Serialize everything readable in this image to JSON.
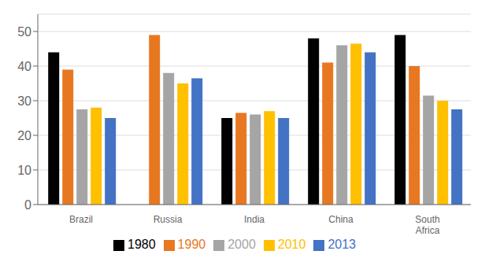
{
  "chart_data": {
    "type": "bar",
    "categories": [
      "Brazil",
      "Russia",
      "India",
      "China",
      "South\nAfrica"
    ],
    "series": [
      {
        "name": "1980",
        "color": "#000000",
        "values": [
          44,
          0,
          25,
          48,
          49
        ]
      },
      {
        "name": "1990",
        "color": "#e87722",
        "values": [
          39,
          49,
          26.5,
          41,
          40
        ]
      },
      {
        "name": "2000",
        "color": "#a5a5a5",
        "values": [
          27.5,
          38,
          26,
          46,
          31.5
        ]
      },
      {
        "name": "2010",
        "color": "#ffc000",
        "values": [
          28,
          35,
          27,
          46.5,
          30
        ]
      },
      {
        "name": "2013",
        "color": "#4472c4",
        "values": [
          25,
          36.5,
          25,
          44,
          27.5
        ]
      }
    ],
    "ylim": [
      0,
      55
    ],
    "yticks": [
      0,
      10,
      20,
      30,
      40,
      50
    ],
    "grid": true,
    "legend": "bottom"
  }
}
